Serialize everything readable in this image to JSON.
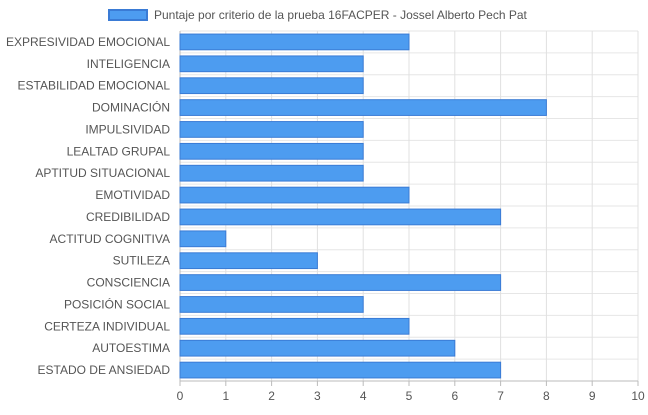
{
  "chart_data": {
    "type": "bar",
    "orientation": "horizontal",
    "legend_position": "top",
    "grid": true,
    "xlim": [
      0,
      10
    ],
    "x_ticks": [
      "0",
      "1",
      "2",
      "3",
      "4",
      "5",
      "6",
      "7",
      "8",
      "9",
      "10"
    ],
    "categories": [
      "EXPRESIVIDAD EMOCIONAL",
      "INTELIGENCIA",
      "ESTABILIDAD EMOCIONAL",
      "DOMINACIÓN",
      "IMPULSIVIDAD",
      "LEALTAD GRUPAL",
      "APTITUD SITUACIONAL",
      "EMOTIVIDAD",
      "CREDIBILIDAD",
      "ACTITUD COGNITIVA",
      "SUTILEZA",
      "CONSCIENCIA",
      "POSICIÓN SOCIAL",
      "CERTEZA INDIVIDUAL",
      "AUTOESTIMA",
      "ESTADO DE ANSIEDAD"
    ],
    "series": [
      {
        "name": "Puntaje por criterio de la prueba 16FACPER - Jossel Alberto Pech Pat",
        "color": "#4d9cf0",
        "border_color": "#3a7bd5",
        "values": [
          5,
          4,
          4,
          8,
          4,
          4,
          4,
          5,
          7,
          1,
          3,
          7,
          4,
          5,
          6,
          7
        ]
      }
    ]
  }
}
